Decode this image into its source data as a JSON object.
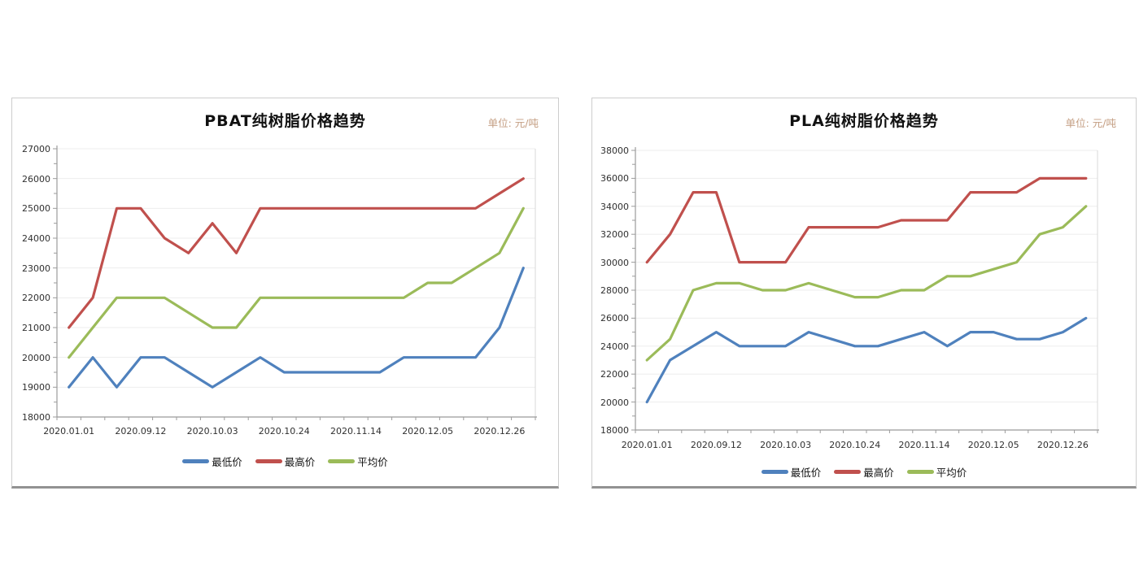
{
  "page": {
    "background": "#ffffff"
  },
  "colors": {
    "series_low": "#4F81BD",
    "series_high": "#C0504D",
    "series_avg": "#9BBB59",
    "gridline": "#ededed",
    "axis": "#9b9b9b",
    "tick_label": "#303030",
    "unit_text": "#c49e82",
    "panel_border": "#cdcdcd",
    "panel_border_bottom": "#929292"
  },
  "charts": [
    {
      "title": "PBAT纯树脂价格趋势",
      "unit_label": "单位: 元/吨",
      "legend": [
        {
          "label": "最低价",
          "color": "#4F81BD"
        },
        {
          "label": "最高价",
          "color": "#C0504D"
        },
        {
          "label": "平均价",
          "color": "#9BBB59"
        }
      ],
      "chart_data": {
        "type": "line",
        "title": "PBAT纯树脂价格趋势",
        "unit": "单位: 元/吨",
        "x_labels": [
          "2020.01.01",
          "2020.09.12",
          "2020.10.03",
          "2020.10.24",
          "2020.11.14",
          "2020.12.05",
          "2020.12.26"
        ],
        "x_label_point_indices": [
          0,
          3,
          6,
          9,
          12,
          15,
          18
        ],
        "n_points": 20,
        "ylim": [
          18000,
          27000
        ],
        "y_step": 1000,
        "grid": true,
        "legend_position": "bottom",
        "series": [
          {
            "name": "最低价",
            "color": "#4F81BD",
            "values": [
              19000,
              20000,
              19000,
              20000,
              20000,
              19500,
              19000,
              19500,
              20000,
              19500,
              19500,
              19500,
              19500,
              19500,
              20000,
              20000,
              20000,
              20000,
              21000,
              23000
            ]
          },
          {
            "name": "最高价",
            "color": "#C0504D",
            "values": [
              21000,
              22000,
              25000,
              25000,
              24000,
              23500,
              24500,
              23500,
              25000,
              25000,
              25000,
              25000,
              25000,
              25000,
              25000,
              25000,
              25000,
              25000,
              25500,
              26000
            ]
          },
          {
            "name": "平均价",
            "color": "#9BBB59",
            "values": [
              20000,
              21000,
              22000,
              22000,
              22000,
              21500,
              21000,
              21000,
              22000,
              22000,
              22000,
              22000,
              22000,
              22000,
              22000,
              22500,
              22500,
              23000,
              23500,
              25000
            ]
          }
        ]
      }
    },
    {
      "title": "PLA纯树脂价格趋势",
      "unit_label": "单位: 元/吨",
      "legend": [
        {
          "label": "最低价",
          "color": "#4F81BD"
        },
        {
          "label": "最高价",
          "color": "#C0504D"
        },
        {
          "label": "平均价",
          "color": "#9BBB59"
        }
      ],
      "chart_data": {
        "type": "line",
        "title": "PLA纯树脂价格趋势",
        "unit": "单位: 元/吨",
        "x_labels": [
          "2020.01.01",
          "2020.09.12",
          "2020.10.03",
          "2020.10.24",
          "2020.11.14",
          "2020.12.05",
          "2020.12.26"
        ],
        "x_label_point_indices": [
          0,
          3,
          6,
          9,
          12,
          15,
          18
        ],
        "n_points": 20,
        "ylim": [
          18000,
          38000
        ],
        "y_step": 2000,
        "grid": true,
        "legend_position": "bottom",
        "series": [
          {
            "name": "最低价",
            "color": "#4F81BD",
            "values": [
              20000,
              23000,
              24000,
              25000,
              24000,
              24000,
              24000,
              25000,
              24500,
              24000,
              24000,
              24500,
              25000,
              24000,
              25000,
              25000,
              24500,
              24500,
              25000,
              26000
            ]
          },
          {
            "name": "最高价",
            "color": "#C0504D",
            "values": [
              30000,
              32000,
              35000,
              35000,
              30000,
              30000,
              30000,
              32500,
              32500,
              32500,
              32500,
              33000,
              33000,
              33000,
              35000,
              35000,
              35000,
              36000,
              36000,
              36000
            ]
          },
          {
            "name": "平均价",
            "color": "#9BBB59",
            "values": [
              23000,
              24500,
              28000,
              28500,
              28500,
              28000,
              28000,
              28500,
              28000,
              27500,
              27500,
              28000,
              28000,
              29000,
              29000,
              29500,
              30000,
              32000,
              32500,
              34000
            ]
          }
        ]
      }
    }
  ]
}
